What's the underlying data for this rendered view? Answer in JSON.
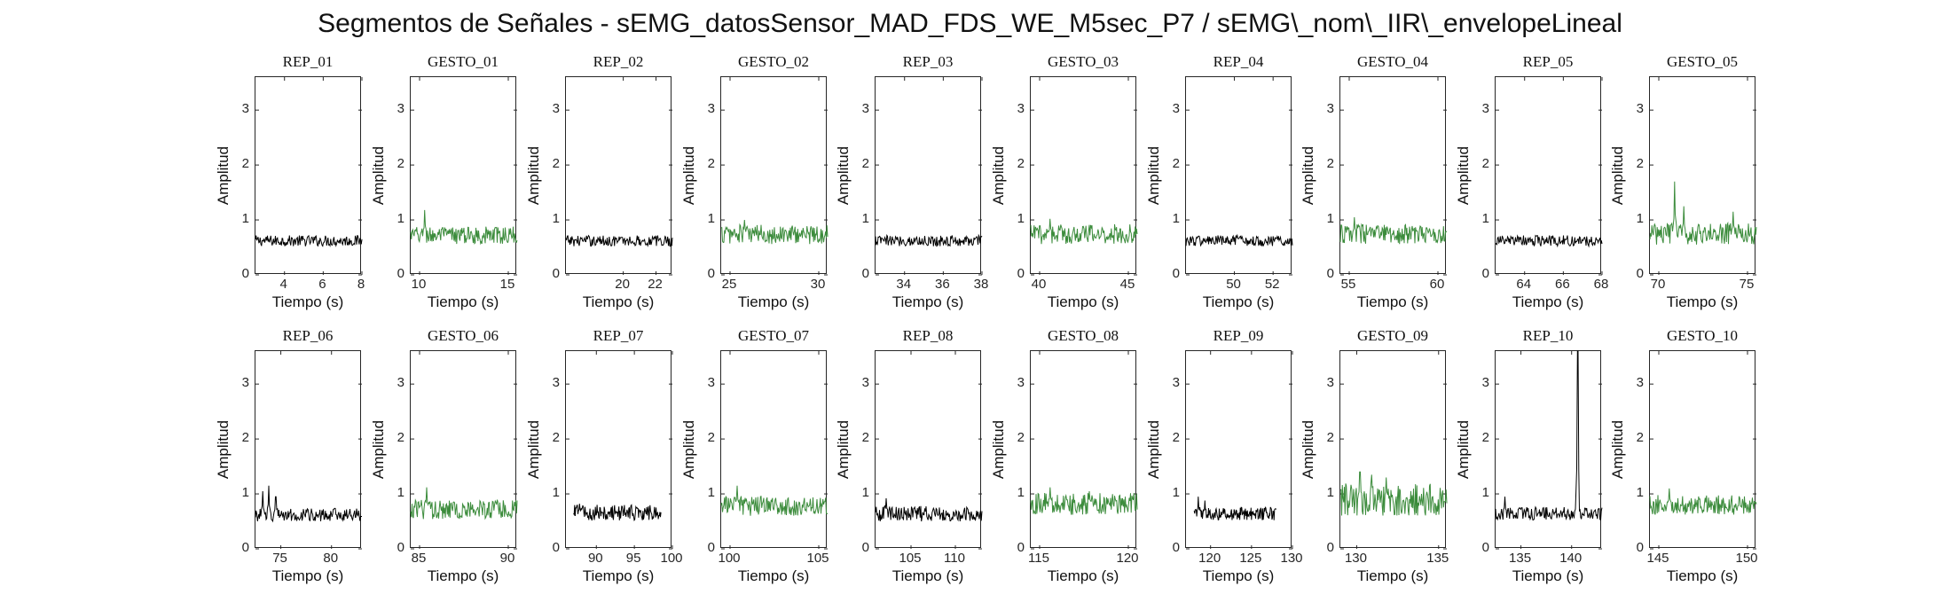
{
  "figure": {
    "title": "Segmentos de Señales - sEMG_datosSensor_MAD_FDS_WE_M5sec_P7 / sEMG\\_nom\\_IIR\\_envelopeLineal"
  },
  "colors": {
    "rep": "#000000",
    "gesto": "#3c8c3c",
    "axis": "#262626"
  },
  "chart_data": [
    {
      "type": "line",
      "title": "REP_01",
      "xlabel": "Tiempo (s)",
      "ylabel": "Amplitud",
      "xlim": [
        2.5,
        8
      ],
      "ylim": [
        0,
        3.6
      ],
      "xticks": [
        4,
        6,
        8
      ],
      "yticks": [
        0,
        1,
        2,
        3
      ],
      "signal": {
        "x_range": [
          2.5,
          8
        ],
        "baseline": 0.62,
        "noise": 0.1,
        "spikes": []
      }
    },
    {
      "type": "line",
      "title": "GESTO_01",
      "xlabel": "Tiempo (s)",
      "ylabel": "Amplitud",
      "xlim": [
        9.5,
        15.5
      ],
      "ylim": [
        0,
        3.6
      ],
      "xticks": [
        10,
        15
      ],
      "yticks": [
        0,
        1,
        2,
        3
      ],
      "signal": {
        "x_range": [
          9.5,
          15.5
        ],
        "baseline": 0.72,
        "noise": 0.16,
        "spikes": [
          {
            "x": 10.3,
            "y": 1.18
          }
        ]
      }
    },
    {
      "type": "line",
      "title": "REP_02",
      "xlabel": "Tiempo (s)",
      "ylabel": "Amplitud",
      "xlim": [
        16.5,
        23
      ],
      "ylim": [
        0,
        3.6
      ],
      "xticks": [
        20,
        22
      ],
      "yticks": [
        0,
        1,
        2,
        3
      ],
      "signal": {
        "x_range": [
          16.5,
          23
        ],
        "baseline": 0.62,
        "noise": 0.1,
        "spikes": []
      }
    },
    {
      "type": "line",
      "title": "GESTO_02",
      "xlabel": "Tiempo (s)",
      "ylabel": "Amplitud",
      "xlim": [
        24.5,
        30.5
      ],
      "ylim": [
        0,
        3.6
      ],
      "xticks": [
        25,
        30
      ],
      "yticks": [
        0,
        1,
        2,
        3
      ],
      "signal": {
        "x_range": [
          24.5,
          30.5
        ],
        "baseline": 0.74,
        "noise": 0.18,
        "spikes": [
          {
            "x": 25.8,
            "y": 1.0
          }
        ]
      }
    },
    {
      "type": "line",
      "title": "REP_03",
      "xlabel": "Tiempo (s)",
      "ylabel": "Amplitud",
      "xlim": [
        32.5,
        38
      ],
      "ylim": [
        0,
        3.6
      ],
      "xticks": [
        34,
        36,
        38
      ],
      "yticks": [
        0,
        1,
        2,
        3
      ],
      "signal": {
        "x_range": [
          32.5,
          38
        ],
        "baseline": 0.62,
        "noise": 0.1,
        "spikes": []
      }
    },
    {
      "type": "line",
      "title": "GESTO_03",
      "xlabel": "Tiempo (s)",
      "ylabel": "Amplitud",
      "xlim": [
        39.5,
        45.5
      ],
      "ylim": [
        0,
        3.6
      ],
      "xticks": [
        40,
        45
      ],
      "yticks": [
        0,
        1,
        2,
        3
      ],
      "signal": {
        "x_range": [
          39.5,
          45.5
        ],
        "baseline": 0.74,
        "noise": 0.18,
        "spikes": [
          {
            "x": 40.6,
            "y": 1.02
          }
        ]
      }
    },
    {
      "type": "line",
      "title": "REP_04",
      "xlabel": "Tiempo (s)",
      "ylabel": "Amplitud",
      "xlim": [
        47.5,
        53
      ],
      "ylim": [
        0,
        3.6
      ],
      "xticks": [
        50,
        52
      ],
      "yticks": [
        0,
        1,
        2,
        3
      ],
      "signal": {
        "x_range": [
          47.5,
          53
        ],
        "baseline": 0.62,
        "noise": 0.1,
        "spikes": []
      }
    },
    {
      "type": "line",
      "title": "GESTO_04",
      "xlabel": "Tiempo (s)",
      "ylabel": "Amplitud",
      "xlim": [
        54.5,
        60.5
      ],
      "ylim": [
        0,
        3.6
      ],
      "xticks": [
        55,
        60
      ],
      "yticks": [
        0,
        1,
        2,
        3
      ],
      "signal": {
        "x_range": [
          54.5,
          60.5
        ],
        "baseline": 0.74,
        "noise": 0.18,
        "spikes": [
          {
            "x": 55.3,
            "y": 1.05
          }
        ]
      }
    },
    {
      "type": "line",
      "title": "REP_05",
      "xlabel": "Tiempo (s)",
      "ylabel": "Amplitud",
      "xlim": [
        62.5,
        68
      ],
      "ylim": [
        0,
        3.6
      ],
      "xticks": [
        64,
        66,
        68
      ],
      "yticks": [
        0,
        1,
        2,
        3
      ],
      "signal": {
        "x_range": [
          62.5,
          68
        ],
        "baseline": 0.62,
        "noise": 0.1,
        "spikes": []
      }
    },
    {
      "type": "line",
      "title": "GESTO_05",
      "xlabel": "Tiempo (s)",
      "ylabel": "Amplitud",
      "xlim": [
        69.5,
        75.5
      ],
      "ylim": [
        0,
        3.6
      ],
      "xticks": [
        70,
        75
      ],
      "yticks": [
        0,
        1,
        2,
        3
      ],
      "signal": {
        "x_range": [
          69.5,
          75.5
        ],
        "baseline": 0.75,
        "noise": 0.2,
        "spikes": [
          {
            "x": 70.9,
            "y": 1.7
          },
          {
            "x": 71.4,
            "y": 1.25
          },
          {
            "x": 74.2,
            "y": 1.15
          }
        ]
      }
    },
    {
      "type": "line",
      "title": "REP_06",
      "xlabel": "Tiempo (s)",
      "ylabel": "Amplitud",
      "xlim": [
        72.5,
        83
      ],
      "ylim": [
        0,
        3.6
      ],
      "xticks": [
        75,
        80
      ],
      "yticks": [
        0,
        1,
        2,
        3
      ],
      "signal": {
        "x_range": [
          72.5,
          83
        ],
        "baseline": 0.62,
        "noise": 0.12,
        "spikes": [
          {
            "x": 73.2,
            "y": 1.05
          },
          {
            "x": 73.8,
            "y": 1.15
          },
          {
            "x": 74.5,
            "y": 0.95
          }
        ]
      }
    },
    {
      "type": "line",
      "title": "GESTO_06",
      "xlabel": "Tiempo (s)",
      "ylabel": "Amplitud",
      "xlim": [
        84.5,
        90.5
      ],
      "ylim": [
        0,
        3.6
      ],
      "xticks": [
        85,
        90
      ],
      "yticks": [
        0,
        1,
        2,
        3
      ],
      "signal": {
        "x_range": [
          84.5,
          90.5
        ],
        "baseline": 0.72,
        "noise": 0.18,
        "spikes": [
          {
            "x": 85.4,
            "y": 1.12
          }
        ]
      }
    },
    {
      "type": "line",
      "title": "REP_07",
      "xlabel": "Tiempo (s)",
      "ylabel": "Amplitud",
      "xlim": [
        86,
        100
      ],
      "ylim": [
        0,
        3.6
      ],
      "xticks": [
        90,
        95,
        100
      ],
      "yticks": [
        0,
        1,
        2,
        3
      ],
      "signal": {
        "x_range": [
          87,
          98.5
        ],
        "baseline": 0.66,
        "noise": 0.14,
        "spikes": [
          {
            "x": 87.8,
            "y": 0.82
          }
        ]
      }
    },
    {
      "type": "line",
      "title": "GESTO_07",
      "xlabel": "Tiempo (s)",
      "ylabel": "Amplitud",
      "xlim": [
        99.5,
        105.5
      ],
      "ylim": [
        0,
        3.6
      ],
      "xticks": [
        100,
        105
      ],
      "yticks": [
        0,
        1,
        2,
        3
      ],
      "signal": {
        "x_range": [
          99.5,
          105.5
        ],
        "baseline": 0.78,
        "noise": 0.18,
        "spikes": [
          {
            "x": 100.4,
            "y": 1.15
          }
        ]
      }
    },
    {
      "type": "line",
      "title": "REP_08",
      "xlabel": "Tiempo (s)",
      "ylabel": "Amplitud",
      "xlim": [
        101,
        113
      ],
      "ylim": [
        0,
        3.6
      ],
      "xticks": [
        105,
        110
      ],
      "yticks": [
        0,
        1,
        2,
        3
      ],
      "signal": {
        "x_range": [
          101,
          113
        ],
        "baseline": 0.64,
        "noise": 0.14,
        "spikes": [
          {
            "x": 102.2,
            "y": 0.92
          }
        ]
      }
    },
    {
      "type": "line",
      "title": "GESTO_08",
      "xlabel": "Tiempo (s)",
      "ylabel": "Amplitud",
      "xlim": [
        114.5,
        120.5
      ],
      "ylim": [
        0,
        3.6
      ],
      "xticks": [
        115,
        120
      ],
      "yticks": [
        0,
        1,
        2,
        3
      ],
      "signal": {
        "x_range": [
          114.5,
          120.5
        ],
        "baseline": 0.82,
        "noise": 0.2,
        "spikes": [
          {
            "x": 115.6,
            "y": 1.12
          },
          {
            "x": 117.8,
            "y": 1.05
          }
        ]
      }
    },
    {
      "type": "line",
      "title": "REP_09",
      "xlabel": "Tiempo (s)",
      "ylabel": "Amplitud",
      "xlim": [
        117,
        130
      ],
      "ylim": [
        0,
        3.6
      ],
      "xticks": [
        120,
        125,
        130
      ],
      "yticks": [
        0,
        1,
        2,
        3
      ],
      "signal": {
        "x_range": [
          118,
          128
        ],
        "baseline": 0.64,
        "noise": 0.12,
        "spikes": [
          {
            "x": 118.5,
            "y": 0.95
          },
          {
            "x": 119.3,
            "y": 0.88
          }
        ]
      }
    },
    {
      "type": "line",
      "title": "GESTO_09",
      "xlabel": "Tiempo (s)",
      "ylabel": "Amplitud",
      "xlim": [
        129,
        135.5
      ],
      "ylim": [
        0,
        3.6
      ],
      "xticks": [
        130,
        135
      ],
      "yticks": [
        0,
        1,
        2,
        3
      ],
      "signal": {
        "x_range": [
          129,
          135.5
        ],
        "baseline": 0.9,
        "noise": 0.3,
        "spikes": [
          {
            "x": 130.2,
            "y": 1.4
          },
          {
            "x": 130.9,
            "y": 1.35
          },
          {
            "x": 131.8,
            "y": 1.3
          }
        ]
      }
    },
    {
      "type": "line",
      "title": "REP_10",
      "xlabel": "Tiempo (s)",
      "ylabel": "Amplitud",
      "xlim": [
        132.5,
        143
      ],
      "ylim": [
        0,
        3.6
      ],
      "xticks": [
        135,
        140
      ],
      "yticks": [
        0,
        1,
        2,
        3
      ],
      "signal": {
        "x_range": [
          132.5,
          143
        ],
        "baseline": 0.64,
        "noise": 0.12,
        "spikes": [
          {
            "x": 133.4,
            "y": 0.95
          },
          {
            "x": 140.6,
            "y": 3.6
          }
        ]
      }
    },
    {
      "type": "line",
      "title": "GESTO_10",
      "xlabel": "Tiempo (s)",
      "ylabel": "Amplitud",
      "xlim": [
        144.5,
        150.5
      ],
      "ylim": [
        0,
        3.6
      ],
      "xticks": [
        145,
        150
      ],
      "yticks": [
        0,
        1,
        2,
        3
      ],
      "signal": {
        "x_range": [
          144.5,
          150.5
        ],
        "baseline": 0.8,
        "noise": 0.18,
        "spikes": [
          {
            "x": 145.6,
            "y": 1.1
          }
        ]
      }
    }
  ]
}
